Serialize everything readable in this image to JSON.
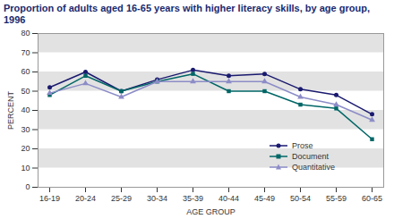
{
  "chart_data": {
    "type": "line",
    "title": "Proportion of adults aged 16-65 years with higher literacy skills, by age group, 1996",
    "x_label": "AGE GROUP",
    "y_label": "PERCENT",
    "categories": [
      "16-19",
      "20-24",
      "25-29",
      "30-34",
      "35-39",
      "40-44",
      "45-49",
      "50-54",
      "55-59",
      "60-65"
    ],
    "series": [
      {
        "name": "Prose",
        "color": "#1a1a70",
        "marker": "circle",
        "values": [
          52,
          60,
          50,
          56,
          61,
          58,
          59,
          51,
          48,
          38
        ]
      },
      {
        "name": "Document",
        "color": "#006666",
        "marker": "square",
        "values": [
          48,
          58,
          50,
          55,
          59,
          50,
          50,
          43,
          41,
          25
        ]
      },
      {
        "name": "Quantitative",
        "color": "#8c8cc8",
        "marker": "triangle",
        "values": [
          49,
          54,
          47,
          55,
          55,
          55,
          55,
          47,
          43,
          35
        ]
      }
    ],
    "ylim": [
      0,
      80
    ],
    "yticks": [
      0,
      10,
      20,
      30,
      40,
      50,
      60,
      70,
      80
    ],
    "grid": true,
    "legend": "bottom-right"
  }
}
